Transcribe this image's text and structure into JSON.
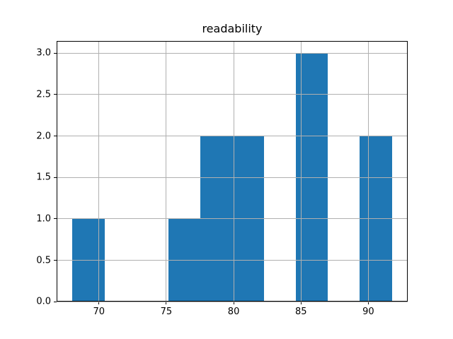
{
  "colors": {
    "bar": "#1f77b4",
    "grid": "#b0b0b0",
    "spine": "#000000",
    "text": "#000000",
    "background": "#ffffff"
  },
  "chart_data": {
    "type": "bar",
    "subtype": "histogram",
    "title": "readability",
    "xlabel": "",
    "ylabel": "",
    "bin_edges": [
      68.04,
      70.41,
      72.78,
      75.15,
      77.52,
      79.89,
      82.26,
      84.63,
      87.0,
      89.37,
      91.74
    ],
    "counts": [
      1,
      0,
      0,
      1,
      2,
      2,
      0,
      3,
      0,
      2
    ],
    "xlim": [
      66.86,
      92.92
    ],
    "ylim": [
      0,
      3.15
    ],
    "xtick_values": [
      70,
      75,
      80,
      85,
      90
    ],
    "xtick_labels": [
      "70",
      "75",
      "80",
      "85",
      "90"
    ],
    "ytick_values": [
      0,
      0.5,
      1,
      1.5,
      2,
      2.5,
      3
    ],
    "ytick_labels": [
      "0.0",
      "0.5",
      "1.0",
      "1.5",
      "2.0",
      "2.5",
      "3.0"
    ],
    "grid": true,
    "grid_above_bars": true,
    "legend": null
  }
}
